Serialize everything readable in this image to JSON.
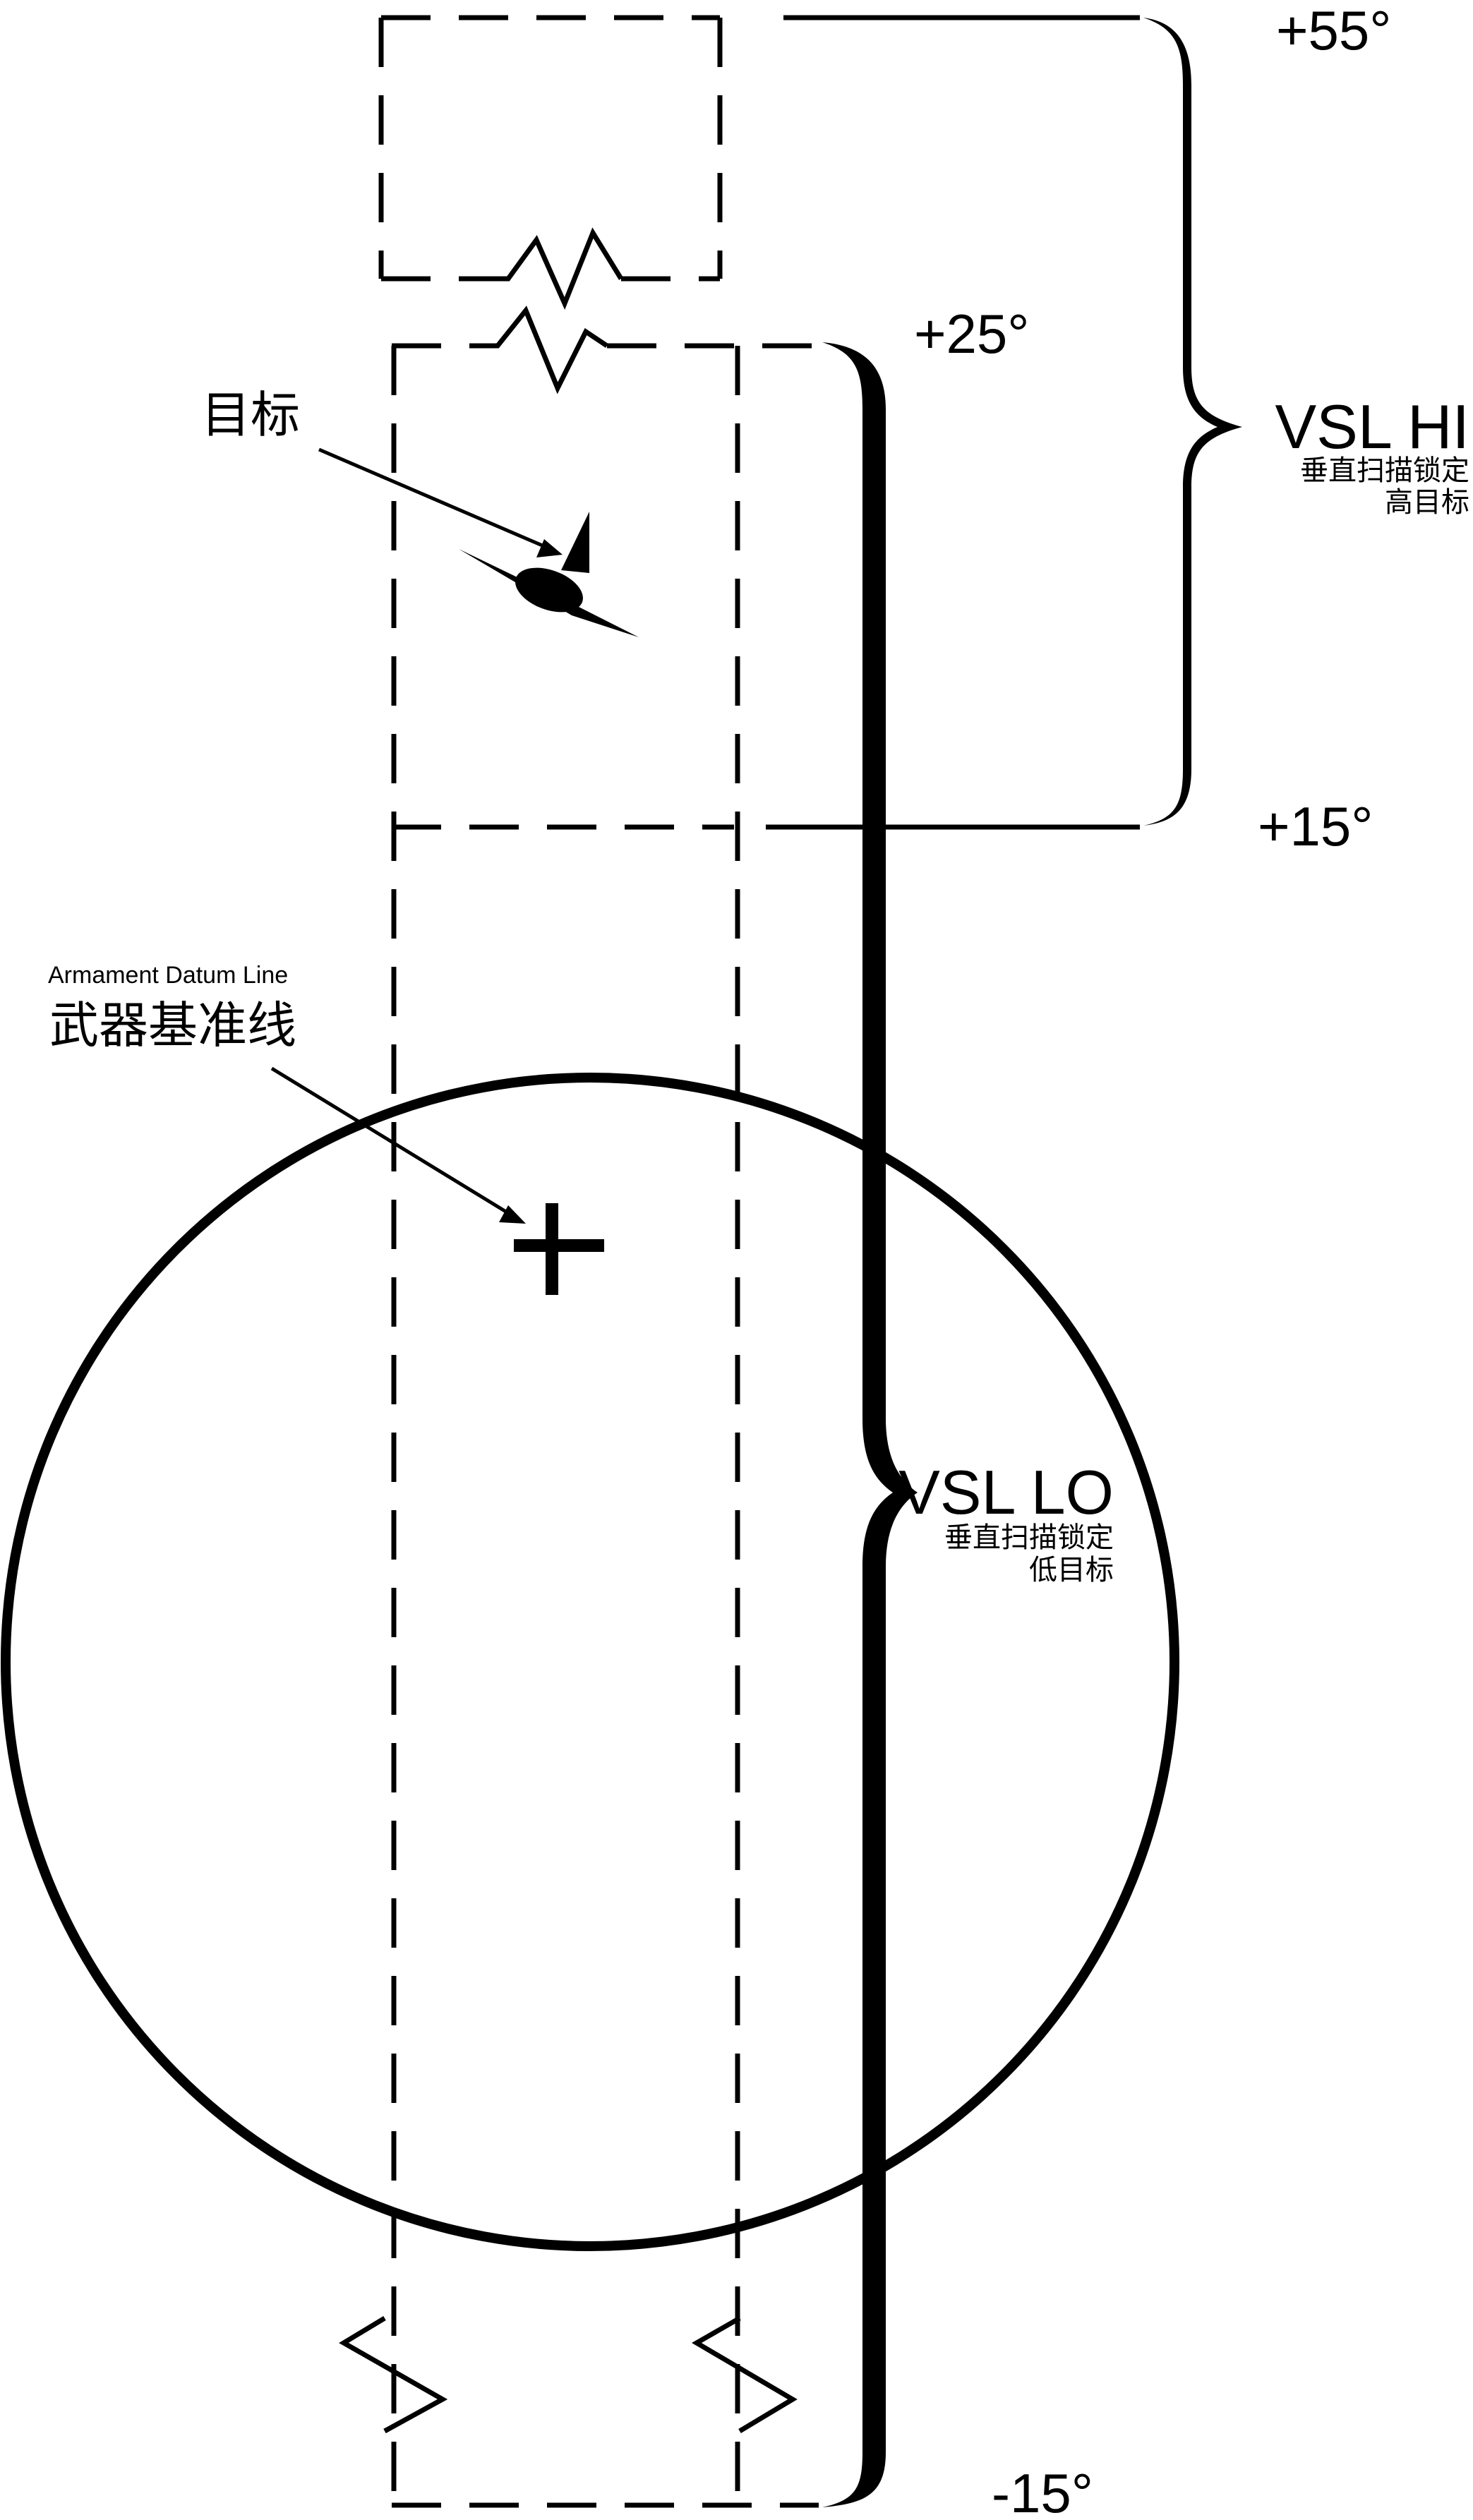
{
  "angles": {
    "hi_top": "+55°",
    "lo_top": "+25°",
    "hi_bottom": "+15°",
    "lo_bottom": "-15°"
  },
  "vsl_hi": {
    "title": "VSL HI",
    "line1": "垂直扫描锁定",
    "line2": "高目标"
  },
  "vsl_lo": {
    "title": "VSL LO",
    "line1": "垂直扫描锁定",
    "line2": "低目标"
  },
  "target": {
    "label": "目标",
    "icon": "aircraft-icon"
  },
  "datum": {
    "label_en": "Armament Datum Line",
    "label_cn": "武器基准线",
    "icon": "cross-icon"
  }
}
